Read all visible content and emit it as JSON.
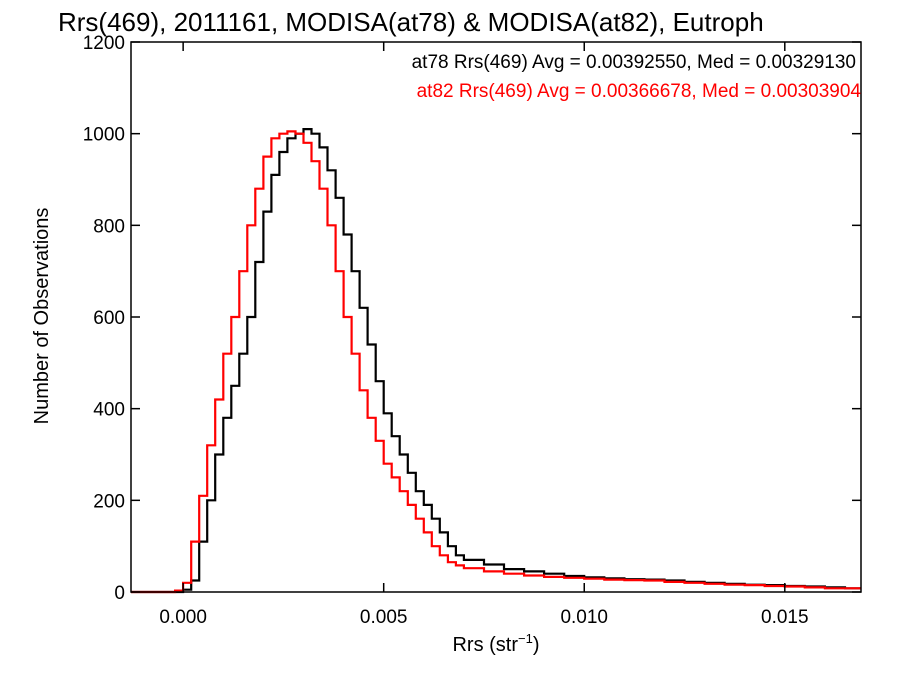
{
  "chart_data": {
    "type": "line",
    "title": "Rrs(469), 2011161, MODISA(at78) & MODISA(at82), Eutroph",
    "xlabel_main": "Rrs (str",
    "xlabel_sup": "−1",
    "xlabel_end": ")",
    "ylabel": "Number of Observations",
    "xlim": [
      -0.0013,
      0.0169
    ],
    "ylim": [
      0,
      1200
    ],
    "xticks": [
      0.0,
      0.005,
      0.01,
      0.015
    ],
    "xtick_labels": [
      "0.000",
      "0.005",
      "0.010",
      "0.015"
    ],
    "yticks": [
      0,
      200,
      400,
      600,
      800,
      1000,
      1200
    ],
    "ytick_labels": [
      "0",
      "200",
      "400",
      "600",
      "800",
      "1000",
      "1200"
    ],
    "grid": false,
    "legend_position": "top-right",
    "series": [
      {
        "name": "at78",
        "legend": "at78 Rrs(469) Avg = 0.00392550, Med = 0.00329130",
        "color": "#000000",
        "x": [
          -0.0013,
          -0.0004,
          0.0,
          0.0002,
          0.0004,
          0.0006,
          0.0008,
          0.001,
          0.0012,
          0.0014,
          0.0016,
          0.0018,
          0.002,
          0.0022,
          0.0024,
          0.0026,
          0.0028,
          0.003,
          0.0032,
          0.0034,
          0.0036,
          0.0038,
          0.004,
          0.0042,
          0.0044,
          0.0046,
          0.0048,
          0.005,
          0.0052,
          0.0054,
          0.0056,
          0.0058,
          0.006,
          0.0062,
          0.0064,
          0.0066,
          0.0068,
          0.007,
          0.0075,
          0.008,
          0.0085,
          0.009,
          0.0095,
          0.01,
          0.0105,
          0.011,
          0.0115,
          0.012,
          0.0125,
          0.013,
          0.0135,
          0.014,
          0.0145,
          0.015,
          0.0155,
          0.016,
          0.0165,
          0.0169
        ],
        "y": [
          0,
          0,
          5,
          25,
          110,
          200,
          300,
          380,
          450,
          520,
          600,
          720,
          830,
          910,
          960,
          990,
          1000,
          1010,
          1000,
          970,
          920,
          860,
          780,
          700,
          620,
          540,
          460,
          390,
          340,
          300,
          260,
          220,
          190,
          160,
          130,
          100,
          80,
          70,
          60,
          50,
          45,
          40,
          35,
          32,
          30,
          28,
          27,
          25,
          22,
          20,
          18,
          16,
          15,
          13,
          12,
          10,
          8,
          8
        ]
      },
      {
        "name": "at82",
        "legend": "at82 Rrs(469) Avg = 0.00366678, Med = 0.00303904",
        "color": "#ff0000",
        "x": [
          -0.0013,
          -0.0004,
          -0.0002,
          0.0,
          0.0002,
          0.0004,
          0.0006,
          0.0008,
          0.001,
          0.0012,
          0.0014,
          0.0016,
          0.0018,
          0.002,
          0.0022,
          0.0024,
          0.0026,
          0.0028,
          0.003,
          0.0032,
          0.0034,
          0.0036,
          0.0038,
          0.004,
          0.0042,
          0.0044,
          0.0046,
          0.0048,
          0.005,
          0.0052,
          0.0054,
          0.0056,
          0.0058,
          0.006,
          0.0062,
          0.0064,
          0.0066,
          0.0068,
          0.007,
          0.0075,
          0.008,
          0.0085,
          0.009,
          0.0095,
          0.01,
          0.0105,
          0.011,
          0.0115,
          0.012,
          0.0125,
          0.013,
          0.0135,
          0.014,
          0.0145,
          0.015,
          0.0155,
          0.016,
          0.0165,
          0.0169
        ],
        "y": [
          0,
          0,
          3,
          20,
          110,
          210,
          320,
          420,
          520,
          600,
          700,
          800,
          880,
          950,
          990,
          1000,
          1005,
          1000,
          980,
          940,
          880,
          800,
          700,
          600,
          520,
          440,
          380,
          330,
          280,
          250,
          220,
          190,
          160,
          130,
          100,
          80,
          65,
          58,
          52,
          45,
          40,
          36,
          33,
          31,
          29,
          27,
          26,
          25,
          22,
          20,
          18,
          16,
          15,
          13,
          12,
          10,
          8,
          8,
          8
        ]
      }
    ]
  },
  "colors": {
    "background": "#ffffff",
    "axes": "#000000",
    "at78": "#000000",
    "at82": "#ff0000"
  }
}
